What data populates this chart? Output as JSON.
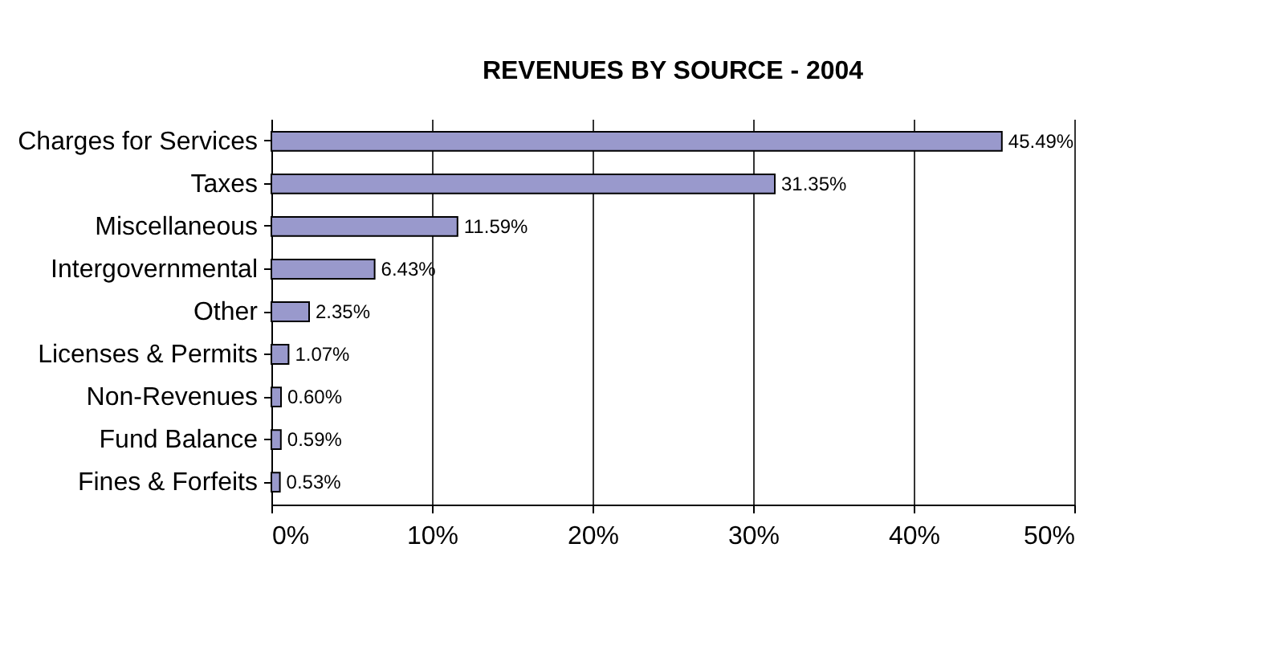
{
  "chart_data": {
    "type": "bar",
    "orientation": "horizontal",
    "title": "REVENUES BY SOURCE - 2004",
    "categories": [
      "Charges for Services",
      "Taxes",
      "Miscellaneous",
      "Intergovernmental",
      "Other",
      "Licenses & Permits",
      "Non-Revenues",
      "Fund Balance",
      "Fines & Forfeits"
    ],
    "values": [
      45.49,
      31.35,
      11.59,
      6.43,
      2.35,
      1.07,
      0.6,
      0.59,
      0.53
    ],
    "value_labels": [
      "45.49%",
      "31.35%",
      "11.59%",
      "6.43%",
      "2.35%",
      "1.07%",
      "0.60%",
      "0.59%",
      "0.53%"
    ],
    "color": "#9999cc",
    "xlim": [
      0,
      50
    ],
    "xticks": [
      {
        "value": 0,
        "label": "0%"
      },
      {
        "value": 10,
        "label": "10%"
      },
      {
        "value": 20,
        "label": "20%"
      },
      {
        "value": 30,
        "label": "30%"
      },
      {
        "value": 40,
        "label": "40%"
      },
      {
        "value": 50,
        "label": "50%"
      }
    ],
    "grid": "x"
  }
}
